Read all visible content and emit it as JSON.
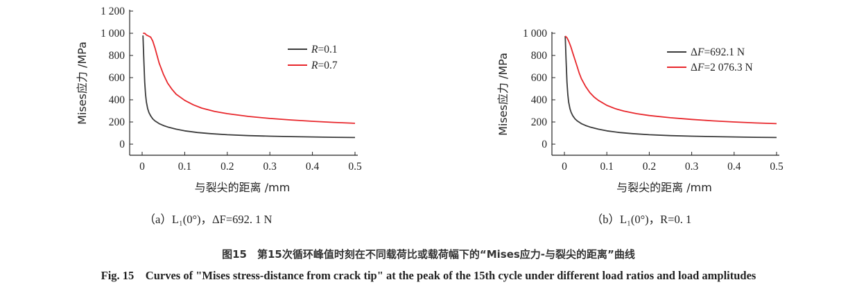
{
  "colors": {
    "axis": "#222222",
    "series_black": "#3a3a3a",
    "series_red": "#e8262b",
    "text": "#222222"
  },
  "caption_cn": "图15　第15次循环峰值时刻在不同载荷比或载荷幅下的“Mises应力-与裂尖的距离”曲线",
  "caption_en": "Fig. 15　Curves of \"Mises stress-distance from crack tip\" at the peak of the 15th cycle under different load ratios and load amplitudes",
  "chart_data": [
    {
      "type": "line",
      "panel_label": "（a）L₁(0°)，ΔF=692. 1 N",
      "xlabel": "与裂尖的距离 /mm",
      "ylabel": "Mises应力 /MPa",
      "xlim": [
        0,
        0.5
      ],
      "ylim": [
        0,
        1200
      ],
      "xticks": [
        0,
        0.1,
        0.2,
        0.3,
        0.4,
        0.5
      ],
      "xtick_labels": [
        "0",
        "0.1",
        "0.2",
        "0.3",
        "0.4",
        "0.5"
      ],
      "yticks": [
        0,
        200,
        400,
        600,
        800,
        1000,
        1200
      ],
      "ytick_labels": [
        "0",
        "200",
        "400",
        "600",
        "800",
        "1 000",
        "1 200"
      ],
      "legend_position": "top-right",
      "grid": false,
      "series": [
        {
          "name": "R=0.1",
          "color": "#3a3a3a",
          "x": [
            0.002,
            0.004,
            0.006,
            0.008,
            0.01,
            0.013,
            0.016,
            0.02,
            0.025,
            0.03,
            0.04,
            0.05,
            0.06,
            0.08,
            0.1,
            0.13,
            0.16,
            0.2,
            0.25,
            0.3,
            0.35,
            0.4,
            0.45,
            0.5
          ],
          "y": [
            980,
            750,
            560,
            450,
            380,
            320,
            285,
            255,
            228,
            210,
            185,
            168,
            155,
            135,
            120,
            105,
            95,
            85,
            77,
            72,
            68,
            65,
            62,
            60
          ]
        },
        {
          "name": "R=0.7",
          "color": "#e8262b",
          "x": [
            0.002,
            0.006,
            0.01,
            0.015,
            0.02,
            0.025,
            0.03,
            0.035,
            0.04,
            0.05,
            0.06,
            0.07,
            0.08,
            0.1,
            0.12,
            0.14,
            0.17,
            0.2,
            0.25,
            0.3,
            0.35,
            0.4,
            0.45,
            0.5
          ],
          "y": [
            1000,
            1000,
            985,
            975,
            965,
            930,
            870,
            800,
            730,
            630,
            550,
            495,
            450,
            395,
            355,
            325,
            295,
            275,
            250,
            232,
            218,
            206,
            196,
            188
          ]
        }
      ]
    },
    {
      "type": "line",
      "panel_label": "（b）L₁(0°)，R=0. 1",
      "xlabel": "与裂尖的距离 /mm",
      "ylabel": "Mises应力 /MPa",
      "xlim": [
        0,
        0.5
      ],
      "ylim": [
        0,
        1000
      ],
      "xticks": [
        0,
        0.1,
        0.2,
        0.3,
        0.4,
        0.5
      ],
      "xtick_labels": [
        "0",
        "0.1",
        "0.2",
        "0.3",
        "0.4",
        "0.5"
      ],
      "yticks": [
        0,
        200,
        400,
        600,
        800,
        1000
      ],
      "ytick_labels": [
        "0",
        "200",
        "400",
        "600",
        "800",
        "1 000"
      ],
      "legend_position": "top-right",
      "grid": false,
      "series": [
        {
          "name": "ΔF=692.1 N",
          "color": "#3a3a3a",
          "x": [
            0.002,
            0.004,
            0.006,
            0.008,
            0.01,
            0.013,
            0.016,
            0.02,
            0.025,
            0.03,
            0.04,
            0.05,
            0.06,
            0.08,
            0.1,
            0.13,
            0.16,
            0.2,
            0.25,
            0.3,
            0.35,
            0.4,
            0.45,
            0.5
          ],
          "y": [
            975,
            760,
            560,
            450,
            380,
            320,
            285,
            255,
            228,
            210,
            185,
            168,
            155,
            135,
            120,
            105,
            95,
            85,
            77,
            72,
            68,
            65,
            62,
            60
          ]
        },
        {
          "name": "ΔF=2 076.3 N",
          "color": "#e8262b",
          "x": [
            0.002,
            0.006,
            0.01,
            0.015,
            0.02,
            0.025,
            0.03,
            0.035,
            0.04,
            0.05,
            0.06,
            0.07,
            0.08,
            0.1,
            0.12,
            0.14,
            0.17,
            0.2,
            0.25,
            0.3,
            0.35,
            0.4,
            0.45,
            0.5
          ],
          "y": [
            975,
            960,
            930,
            880,
            820,
            760,
            700,
            640,
            590,
            520,
            465,
            425,
            395,
            350,
            320,
            298,
            275,
            258,
            238,
            223,
            210,
            200,
            191,
            185
          ]
        }
      ]
    }
  ]
}
